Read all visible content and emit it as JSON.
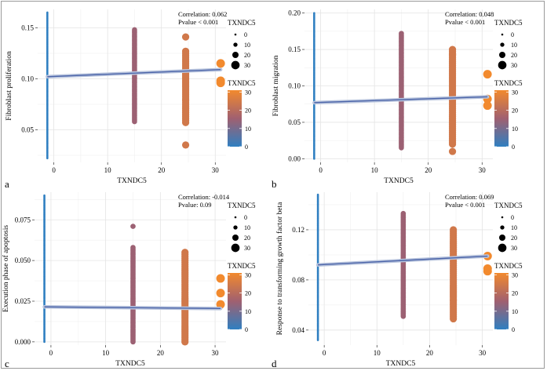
{
  "figure": {
    "xlabel": "TXNDC5",
    "legend_size_title": "TXNDC5",
    "legend_color_title": "TXNDC5"
  },
  "chart_data": [
    {
      "panel_label": "a",
      "type": "scatter",
      "xlabel": "TXNDC5",
      "ylabel": "Fibroblast proliferation",
      "xlim": [
        -3,
        32
      ],
      "ylim": [
        0.018,
        0.168
      ],
      "xticks": [
        "0",
        "10",
        "20",
        "30"
      ],
      "yticks": [
        "0.05",
        "0.10",
        "0.15"
      ],
      "annotation": [
        "Correlation: 0.062",
        "Pvalue < 0.001"
      ],
      "size_legend": [
        "0",
        "10",
        "20",
        "30"
      ],
      "color_legend": [
        "0",
        "10",
        "20",
        "30"
      ],
      "groups": [
        {
          "x": -1.2,
          "y_min": 0.022,
          "y_max": 0.165,
          "size": 0
        },
        {
          "x": 15,
          "y_min": 0.058,
          "y_max": 0.148,
          "size": 15
        },
        {
          "x": 24.5,
          "y_min": 0.057,
          "y_max": 0.127,
          "size": 24.5,
          "extra_y": [
            0.141,
            0.035
          ]
        },
        {
          "x": 31,
          "points_y": [
            0.115,
            0.098,
            0.096
          ],
          "size": 31
        }
      ],
      "trend": {
        "x": [
          -1.2,
          31
        ],
        "y": [
          0.102,
          0.109
        ]
      }
    },
    {
      "panel_label": "b",
      "type": "scatter",
      "xlabel": "TXNDC5",
      "ylabel": "Fibroblast migration",
      "xlim": [
        -3,
        32
      ],
      "ylim": [
        -0.005,
        0.205
      ],
      "xticks": [
        "0",
        "10",
        "20",
        "30"
      ],
      "yticks": [
        "0.00",
        "0.05",
        "0.10",
        "0.15",
        "0.20"
      ],
      "annotation": [
        "Correlation: 0.048",
        "Pvalue < 0.001"
      ],
      "size_legend": [
        "0",
        "10",
        "20",
        "30"
      ],
      "color_legend": [
        "0",
        "10",
        "20",
        "30"
      ],
      "groups": [
        {
          "x": -1.2,
          "y_min": 0.0,
          "y_max": 0.2,
          "size": 0
        },
        {
          "x": 15,
          "y_min": 0.015,
          "y_max": 0.172,
          "size": 15
        },
        {
          "x": 24.5,
          "y_min": 0.02,
          "y_max": 0.15,
          "size": 24.5,
          "extra_y": [
            0.143,
            0.01
          ]
        },
        {
          "x": 31,
          "points_y": [
            0.116,
            0.082,
            0.073
          ],
          "size": 31
        }
      ],
      "trend": {
        "x": [
          -1.2,
          31
        ],
        "y": [
          0.077,
          0.085
        ]
      }
    },
    {
      "panel_label": "c",
      "type": "scatter",
      "xlabel": "TXNDC5",
      "ylabel": "Execution phase of apoptosis",
      "xlim": [
        -3,
        32
      ],
      "ylim": [
        -0.002,
        0.092
      ],
      "xticks": [
        "0",
        "10",
        "20",
        "30"
      ],
      "yticks": [
        "0.000",
        "0.025",
        "0.050",
        "0.075"
      ],
      "annotation": [
        "Correlation: -0.014",
        "Pvalue: 0.09"
      ],
      "size_legend": [
        "0",
        "10",
        "20",
        "30"
      ],
      "color_legend": [
        "0",
        "10",
        "20",
        "30"
      ],
      "groups": [
        {
          "x": -1.2,
          "y_min": 0.0,
          "y_max": 0.09,
          "size": 0
        },
        {
          "x": 15,
          "y_min": 0.0,
          "y_max": 0.058,
          "size": 15,
          "extra_y": [
            0.071
          ]
        },
        {
          "x": 24.5,
          "y_min": 0.0,
          "y_max": 0.055,
          "size": 24.5
        },
        {
          "x": 31,
          "points_y": [
            0.039,
            0.03,
            0.023
          ],
          "size": 31
        }
      ],
      "trend": {
        "x": [
          -1.2,
          31
        ],
        "y": [
          0.0215,
          0.0205
        ]
      }
    },
    {
      "panel_label": "d",
      "type": "scatter",
      "xlabel": "TXNDC5",
      "ylabel": "Response to transforming growth factor beta",
      "xlim": [
        -3,
        32
      ],
      "ylim": [
        0.028,
        0.15
      ],
      "xticks": [
        "0",
        "10",
        "20",
        "30"
      ],
      "yticks": [
        "0.04",
        "0.08",
        "0.12"
      ],
      "annotation": [
        "Correlation: 0.069",
        "Pvalue < 0.001"
      ],
      "size_legend": [
        "0",
        "10",
        "20",
        "30"
      ],
      "color_legend": [
        "0",
        "10",
        "20",
        "30"
      ],
      "groups": [
        {
          "x": -1.2,
          "y_min": 0.032,
          "y_max": 0.148,
          "size": 0
        },
        {
          "x": 15,
          "y_min": 0.051,
          "y_max": 0.133,
          "size": 15
        },
        {
          "x": 24.5,
          "y_min": 0.049,
          "y_max": 0.12,
          "size": 24.5
        },
        {
          "x": 31,
          "points_y": [
            0.099,
            0.089,
            0.087
          ],
          "size": 31
        }
      ],
      "trend": {
        "x": [
          -1.2,
          31
        ],
        "y": [
          0.092,
          0.099
        ]
      }
    }
  ]
}
